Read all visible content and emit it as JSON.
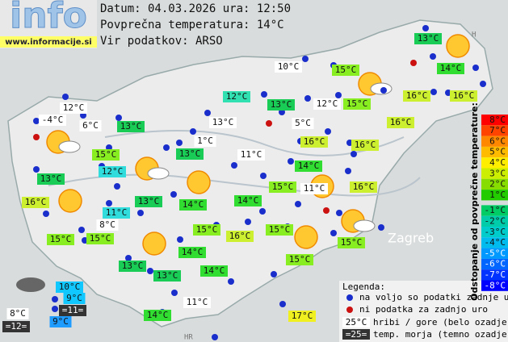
{
  "logo": {
    "word": "info",
    "url": "www.informacije.si"
  },
  "header": {
    "lines": [
      "Datum: 04.03.2026 ura: 12:50",
      "Povprečna temperatura: 14°C",
      "Vir podatkov: ARSO"
    ]
  },
  "places": [
    "Zagreb",
    "HR",
    "H"
  ],
  "stations": [
    "13°C",
    "10°C",
    "15°C",
    "14°C",
    "12°C",
    "13°C",
    "12°C",
    "15°C",
    "16°C",
    "16°C",
    "12°C",
    "-4°C",
    "6°C",
    "13°C",
    "13°C",
    "5°C",
    "16°C",
    "16°C",
    "16°C",
    "1°C",
    "15°C",
    "13°C",
    "11°C",
    "12°C",
    "14°C",
    "13°C",
    "15°C",
    "11°C",
    "16°C",
    "16°C",
    "13°C",
    "14°C",
    "14°C",
    "11°C",
    "8°C",
    "15°C",
    "15°C",
    "15°C",
    "16°C",
    "15°C",
    "15°C",
    "14°C",
    "13°C",
    "13°C",
    "14°C",
    "15°C",
    "10°C",
    "9°C",
    "11°C",
    "14°C",
    "17°C",
    "8°C",
    "=11=",
    "9°C",
    "=12="
  ],
  "legend": {
    "title": "Legenda:",
    "items": [
      {
        "text": "na voljo so podatki zadnje ure"
      },
      {
        "text": "ni podatka za zadnjo uro"
      },
      {
        "sample": "25°C",
        "text": "hribi / gore (belo ozadje)"
      },
      {
        "sample": "=25=",
        "text": "temp. morja (temno ozadje)"
      }
    ]
  },
  "scale": {
    "title": "Odstopanje od povprečne temperature:",
    "labels": [
      "8°C",
      "7°C",
      "6°C",
      "5°C",
      "4°C",
      "3°C",
      "2°C",
      "1°C",
      "-1°C",
      "-2°C",
      "-3°C",
      "-4°C",
      "-5°C",
      "-6°C",
      "-7°C",
      "-8°C"
    ]
  }
}
